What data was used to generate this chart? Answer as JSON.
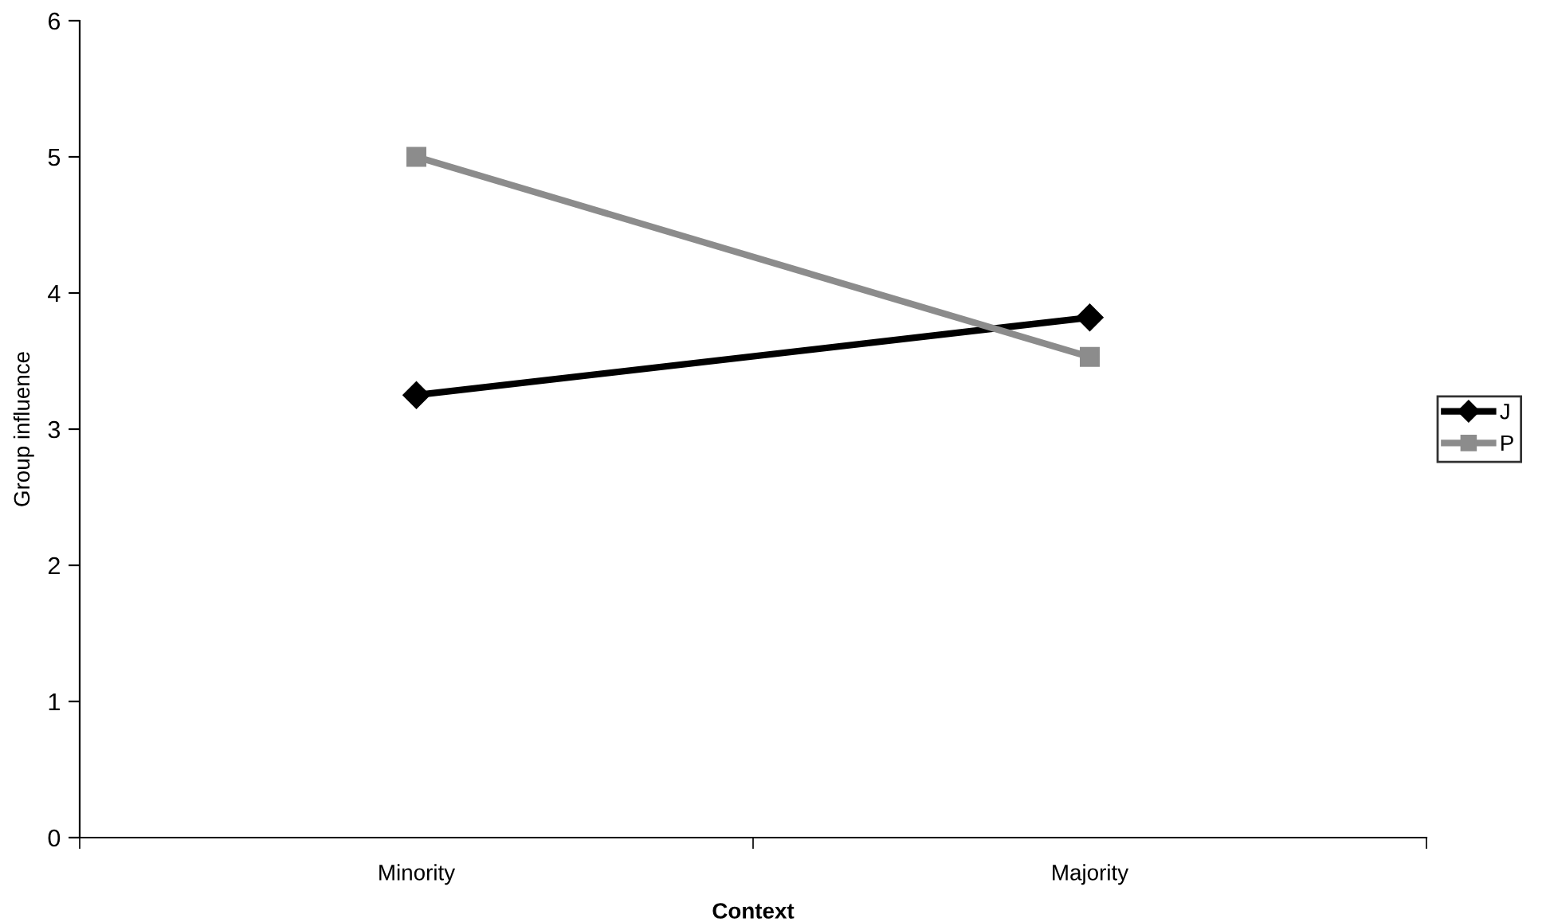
{
  "chart_data": {
    "type": "line",
    "xlabel": "Context",
    "ylabel": "Group influence",
    "categories": [
      "Minority",
      "Majority"
    ],
    "series": [
      {
        "name": "J",
        "color": "#000000",
        "values": [
          3.25,
          3.82
        ],
        "marker": "diamond"
      },
      {
        "name": "P",
        "color": "#8c8c8c",
        "values": [
          5.0,
          3.53
        ],
        "marker": "square"
      }
    ],
    "ylim": [
      0,
      6
    ],
    "yticks": [
      0,
      1,
      2,
      3,
      4,
      5,
      6
    ],
    "grid": false,
    "legend": "right",
    "line_style": "solid"
  }
}
